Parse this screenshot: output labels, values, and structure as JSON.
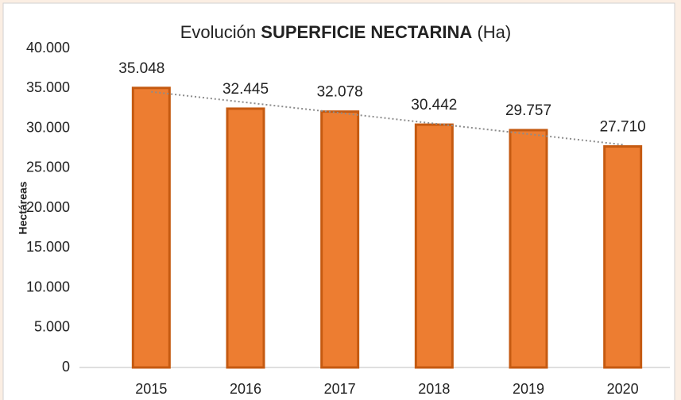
{
  "chart_data": {
    "type": "bar",
    "title": [
      "Evolución",
      "SUPERFICIE NECTARINA",
      "(Ha)"
    ],
    "y_label": "Hectáreas",
    "categories": [
      "2015",
      "2016",
      "2017",
      "2018",
      "2019",
      "2020"
    ],
    "values": [
      35048,
      32445,
      32078,
      30442,
      29757,
      27710
    ],
    "value_labels": [
      "35.048",
      "32.445",
      "32.078",
      "30.442",
      "29.757",
      "27.710"
    ],
    "color": "#ed7d31",
    "edge_color": "#c55a11",
    "ylim": [
      0,
      40000
    ],
    "yticks": [
      0,
      {
        "value": 5000,
        "label": "5.000"
      },
      {
        "value": 10000,
        "label": "10.000"
      },
      {
        "value": 15000,
        "label": "15.000"
      },
      {
        "value": 20000,
        "label": "20.000"
      },
      {
        "value": 25000,
        "label": "25.000"
      },
      {
        "value": 30000,
        "label": "30.000"
      },
      {
        "value": 35000,
        "label": "35.000"
      },
      {
        "value": 40000,
        "label": "40.000"
      }
    ],
    "grid": false,
    "trendline": true
  }
}
